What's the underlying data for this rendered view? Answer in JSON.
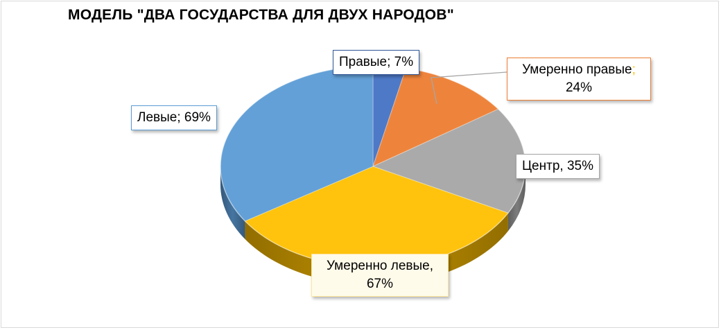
{
  "chart_data": {
    "type": "pie",
    "title": "МОДЕЛЬ \"ДВА ГОСУДАРСТВА ДЛЯ ДВУХ НАРОДОВ\"",
    "legend": "none",
    "three_d": true,
    "slices": [
      {
        "label": "Правые",
        "value": 7,
        "data_label": "Правые; 7%",
        "color": "#4472c4"
      },
      {
        "label": "Умеренно правые",
        "value": 24,
        "data_label_line1": "Умеренно правые",
        "data_label_sep": ";",
        "data_label_line2": "24%",
        "color": "#ed7d31"
      },
      {
        "label": "Центр",
        "value": 35,
        "data_label": "Центр, 35%",
        "color": "#a5a5a5"
      },
      {
        "label": "Умеренно левые",
        "value": 67,
        "data_label_line1": "Умеренно левые,",
        "data_label_line2": "67%",
        "color": "#ffc000"
      },
      {
        "label": "Левые",
        "value": 69,
        "data_label": "Левые; 69%",
        "color": "#5b9bd5"
      }
    ]
  }
}
